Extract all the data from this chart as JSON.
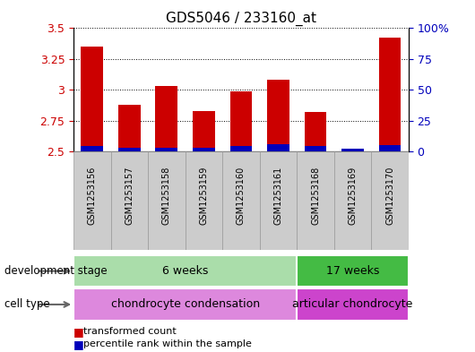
{
  "title": "GDS5046 / 233160_at",
  "samples": [
    "GSM1253156",
    "GSM1253157",
    "GSM1253158",
    "GSM1253159",
    "GSM1253160",
    "GSM1253161",
    "GSM1253168",
    "GSM1253169",
    "GSM1253170"
  ],
  "transformed_count": [
    3.35,
    2.88,
    3.03,
    2.83,
    2.99,
    3.08,
    2.82,
    2.52,
    3.42
  ],
  "percentile_rank_pct": [
    4,
    3,
    3,
    3,
    4,
    6,
    4,
    2,
    5
  ],
  "ylim_left": [
    2.5,
    3.5
  ],
  "ylim_right": [
    0,
    100
  ],
  "yticks_left": [
    2.5,
    2.75,
    3.0,
    3.25,
    3.5
  ],
  "yticks_right": [
    0,
    25,
    50,
    75,
    100
  ],
  "ytick_labels_left": [
    "2.5",
    "2.75",
    "3",
    "3.25",
    "3.5"
  ],
  "ytick_labels_right": [
    "0",
    "25",
    "50",
    "75",
    "100%"
  ],
  "bar_bottom": 2.5,
  "red_color": "#cc0000",
  "blue_color": "#0000bb",
  "plot_bg": "#ffffff",
  "dev_stage_groups": [
    {
      "label": "6 weeks",
      "start": 0,
      "end": 6,
      "color": "#aaddaa"
    },
    {
      "label": "17 weeks",
      "start": 6,
      "end": 9,
      "color": "#44bb44"
    }
  ],
  "cell_type_groups": [
    {
      "label": "chondrocyte condensation",
      "start": 0,
      "end": 6,
      "color": "#dd88dd"
    },
    {
      "label": "articular chondrocyte",
      "start": 6,
      "end": 9,
      "color": "#cc44cc"
    }
  ],
  "left_labels": [
    "development stage",
    "cell type"
  ],
  "legend_labels": [
    "transformed count",
    "percentile rank within the sample"
  ],
  "legend_colors": [
    "#cc0000",
    "#0000bb"
  ],
  "tick_color_left": "#cc0000",
  "tick_color_right": "#0000bb",
  "bar_width": 0.6
}
